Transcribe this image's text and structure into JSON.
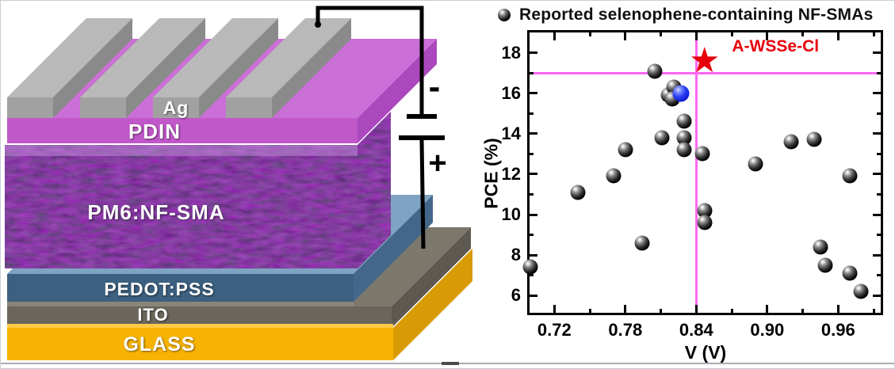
{
  "figure": {
    "device": {
      "labels": {
        "ag": "Ag",
        "pdin": "PDIN",
        "active": "PM6:NF-SMA",
        "pedot": "PEDOT:PSS",
        "ito": "ITO",
        "glass": "GLASS"
      },
      "battery": {
        "negative": "-",
        "positive": "+"
      },
      "colors": {
        "glass": "#F7B301",
        "ito": "#6B665B",
        "pedot": "#3C6080",
        "active": "#3E0C5E",
        "pdin": "#C158CA",
        "silver": "#A1A1A1"
      }
    }
  },
  "chart_data": {
    "type": "scatter",
    "legend": "Reported selenophene-containing NF-SMAs",
    "xlabel": "V (V)",
    "ylabel": "PCE (%)",
    "xlim": [
      0.699,
      0.996
    ],
    "ylim": [
      5.15,
      19.0
    ],
    "xticks": [
      0.72,
      0.78,
      0.84,
      0.9,
      0.96
    ],
    "xtick_labels": [
      "0.72",
      "0.78",
      "0.84",
      "0.90",
      "0.96"
    ],
    "xticks_minor": [
      0.75,
      0.81,
      0.87,
      0.93,
      0.99
    ],
    "yticks": [
      6,
      8,
      10,
      12,
      14,
      16,
      18
    ],
    "ytick_labels": [
      "6",
      "8",
      "10",
      "12",
      "14",
      "16",
      "18"
    ],
    "yticks_minor": [
      7,
      9,
      11,
      13,
      15,
      17
    ],
    "grid": false,
    "series": [
      {
        "name": "Reported selenophene-containing NF-SMAs",
        "marker": "sphere-black",
        "points": [
          [
            0.7,
            7.4
          ],
          [
            0.74,
            11.1
          ],
          [
            0.77,
            11.9
          ],
          [
            0.78,
            13.2
          ],
          [
            0.794,
            8.6
          ],
          [
            0.805,
            17.1
          ],
          [
            0.811,
            13.8
          ],
          [
            0.816,
            15.9
          ],
          [
            0.821,
            16.3
          ],
          [
            0.82,
            15.7
          ],
          [
            0.83,
            14.6
          ],
          [
            0.83,
            13.8
          ],
          [
            0.83,
            13.2
          ],
          [
            0.845,
            13.0
          ],
          [
            0.847,
            10.2
          ],
          [
            0.847,
            9.6
          ],
          [
            0.89,
            12.5
          ],
          [
            0.92,
            13.6
          ],
          [
            0.94,
            13.7
          ],
          [
            0.945,
            8.4
          ],
          [
            0.949,
            7.5
          ],
          [
            0.97,
            11.9
          ],
          [
            0.97,
            7.1
          ],
          [
            0.979,
            6.2
          ]
        ]
      },
      {
        "name": "highlighted-device",
        "marker": "sphere-blue",
        "points": [
          [
            0.827,
            16.0
          ]
        ]
      },
      {
        "name": "A-WSSe-Cl",
        "marker": "star",
        "glyph": "★",
        "color": "#E8000B",
        "points": [
          [
            0.847,
            17.5
          ]
        ]
      }
    ],
    "crosshair": {
      "x": 0.84,
      "y": 17.0,
      "color": "#FF66F2"
    },
    "annotation": {
      "text": "A-WSSe-Cl",
      "x": 0.907,
      "y": 18.3,
      "color": "#E8000B"
    }
  }
}
